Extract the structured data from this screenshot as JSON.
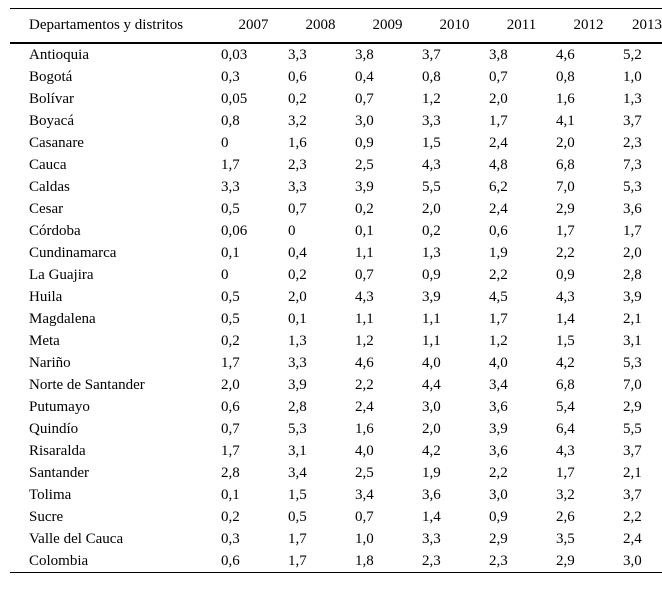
{
  "page": {
    "background_color": "#ffffff",
    "text_color": "#000000",
    "rule_color": "#000000"
  },
  "table": {
    "header": {
      "label_column": "Departamentos y distritos",
      "years": [
        "2007",
        "2008",
        "2009",
        "2010",
        "2011",
        "2012",
        "2013"
      ]
    },
    "rows": [
      {
        "name": "Antioquia",
        "values": [
          "0,03",
          "3,3",
          "3,8",
          "3,7",
          "3,8",
          "4,6",
          "5,2"
        ]
      },
      {
        "name": "Bogotá",
        "values": [
          "0,3",
          "0,6",
          "0,4",
          "0,8",
          "0,7",
          "0,8",
          "1,0"
        ]
      },
      {
        "name": "Bolívar",
        "values": [
          "0,05",
          "0,2",
          "0,7",
          "1,2",
          "2,0",
          "1,6",
          "1,3"
        ]
      },
      {
        "name": "Boyacá",
        "values": [
          "0,8",
          "3,2",
          "3,0",
          "3,3",
          "1,7",
          "4,1",
          "3,7"
        ]
      },
      {
        "name": "Casanare",
        "values": [
          "0",
          "1,6",
          "0,9",
          "1,5",
          "2,4",
          "2,0",
          "2,3"
        ]
      },
      {
        "name": "Cauca",
        "values": [
          "1,7",
          "2,3",
          "2,5",
          "4,3",
          "4,8",
          "6,8",
          "7,3"
        ]
      },
      {
        "name": "Caldas",
        "values": [
          "3,3",
          "3,3",
          "3,9",
          "5,5",
          "6,2",
          "7,0",
          "5,3"
        ]
      },
      {
        "name": "Cesar",
        "values": [
          "0,5",
          "0,7",
          "0,2",
          "2,0",
          "2,4",
          "2,9",
          "3,6"
        ]
      },
      {
        "name": "Córdoba",
        "values": [
          "0,06",
          "0",
          "0,1",
          "0,2",
          "0,6",
          "1,7",
          "1,7"
        ]
      },
      {
        "name": "Cundinamarca",
        "values": [
          "0,1",
          "0,4",
          "1,1",
          "1,3",
          "1,9",
          "2,2",
          "2,0"
        ]
      },
      {
        "name": "La Guajira",
        "values": [
          "0",
          "0,2",
          "0,7",
          "0,9",
          "2,2",
          "0,9",
          "2,8"
        ]
      },
      {
        "name": "Huila",
        "values": [
          "0,5",
          "2,0",
          "4,3",
          "3,9",
          "4,5",
          "4,3",
          "3,9"
        ]
      },
      {
        "name": "Magdalena",
        "values": [
          "0,5",
          "0,1",
          "1,1",
          "1,1",
          "1,7",
          "1,4",
          "2,1"
        ]
      },
      {
        "name": "Meta",
        "values": [
          "0,2",
          "1,3",
          "1,2",
          "1,1",
          "1,2",
          "1,5",
          "3,1"
        ]
      },
      {
        "name": "Nariño",
        "values": [
          "1,7",
          "3,3",
          "4,6",
          "4,0",
          "4,0",
          "4,2",
          "5,3"
        ]
      },
      {
        "name": "Norte de Santander",
        "values": [
          "2,0",
          "3,9",
          "2,2",
          "4,4",
          "3,4",
          "6,8",
          "7,0"
        ]
      },
      {
        "name": "Putumayo",
        "values": [
          "0,6",
          "2,8",
          "2,4",
          "3,0",
          "3,6",
          "5,4",
          "2,9"
        ]
      },
      {
        "name": "Quindío",
        "values": [
          "0,7",
          "5,3",
          "1,6",
          "2,0",
          "3,9",
          "6,4",
          "5,5"
        ]
      },
      {
        "name": "Risaralda",
        "values": [
          "1,7",
          "3,1",
          "4,0",
          "4,2",
          "3,6",
          "4,3",
          "3,7"
        ]
      },
      {
        "name": "Santander",
        "values": [
          "2,8",
          "3,4",
          "2,5",
          "1,9",
          "2,2",
          "1,7",
          "2,1"
        ]
      },
      {
        "name": "Tolima",
        "values": [
          "0,1",
          "1,5",
          "3,4",
          "3,6",
          "3,0",
          "3,2",
          "3,7"
        ]
      },
      {
        "name": "Sucre",
        "values": [
          "0,2",
          "0,5",
          "0,7",
          "1,4",
          "0,9",
          "2,6",
          "2,2"
        ]
      },
      {
        "name": "Valle del Cauca",
        "values": [
          "0,3",
          "1,7",
          "1,0",
          "3,3",
          "2,9",
          "3,5",
          "2,4"
        ]
      },
      {
        "name": "Colombia",
        "values": [
          "0,6",
          "1,7",
          "1,8",
          "2,3",
          "2,3",
          "2,9",
          "3,0"
        ]
      }
    ]
  },
  "chart_data": {
    "type": "table",
    "columns": [
      "Departamentos y distritos",
      "2007",
      "2008",
      "2009",
      "2010",
      "2011",
      "2012",
      "2013"
    ],
    "rows": [
      [
        "Antioquia",
        0.03,
        3.3,
        3.8,
        3.7,
        3.8,
        4.6,
        5.2
      ],
      [
        "Bogotá",
        0.3,
        0.6,
        0.4,
        0.8,
        0.7,
        0.8,
        1.0
      ],
      [
        "Bolívar",
        0.05,
        0.2,
        0.7,
        1.2,
        2.0,
        1.6,
        1.3
      ],
      [
        "Boyacá",
        0.8,
        3.2,
        3.0,
        3.3,
        1.7,
        4.1,
        3.7
      ],
      [
        "Casanare",
        0,
        1.6,
        0.9,
        1.5,
        2.4,
        2.0,
        2.3
      ],
      [
        "Cauca",
        1.7,
        2.3,
        2.5,
        4.3,
        4.8,
        6.8,
        7.3
      ],
      [
        "Caldas",
        3.3,
        3.3,
        3.9,
        5.5,
        6.2,
        7.0,
        5.3
      ],
      [
        "Cesar",
        0.5,
        0.7,
        0.2,
        2.0,
        2.4,
        2.9,
        3.6
      ],
      [
        "Córdoba",
        0.06,
        0,
        0.1,
        0.2,
        0.6,
        1.7,
        1.7
      ],
      [
        "Cundinamarca",
        0.1,
        0.4,
        1.1,
        1.3,
        1.9,
        2.2,
        2.0
      ],
      [
        "La Guajira",
        0,
        0.2,
        0.7,
        0.9,
        2.2,
        0.9,
        2.8
      ],
      [
        "Huila",
        0.5,
        2.0,
        4.3,
        3.9,
        4.5,
        4.3,
        3.9
      ],
      [
        "Magdalena",
        0.5,
        0.1,
        1.1,
        1.1,
        1.7,
        1.4,
        2.1
      ],
      [
        "Meta",
        0.2,
        1.3,
        1.2,
        1.1,
        1.2,
        1.5,
        3.1
      ],
      [
        "Nariño",
        1.7,
        3.3,
        4.6,
        4.0,
        4.0,
        4.2,
        5.3
      ],
      [
        "Norte de Santander",
        2.0,
        3.9,
        2.2,
        4.4,
        3.4,
        6.8,
        7.0
      ],
      [
        "Putumayo",
        0.6,
        2.8,
        2.4,
        3.0,
        3.6,
        5.4,
        2.9
      ],
      [
        "Quindío",
        0.7,
        5.3,
        1.6,
        2.0,
        3.9,
        6.4,
        5.5
      ],
      [
        "Risaralda",
        1.7,
        3.1,
        4.0,
        4.2,
        3.6,
        4.3,
        3.7
      ],
      [
        "Santander",
        2.8,
        3.4,
        2.5,
        1.9,
        2.2,
        1.7,
        2.1
      ],
      [
        "Tolima",
        0.1,
        1.5,
        3.4,
        3.6,
        3.0,
        3.2,
        3.7
      ],
      [
        "Sucre",
        0.2,
        0.5,
        0.7,
        1.4,
        0.9,
        2.6,
        2.2
      ],
      [
        "Valle del Cauca",
        0.3,
        1.7,
        1.0,
        3.3,
        2.9,
        3.5,
        2.4
      ],
      [
        "Colombia",
        0.6,
        1.7,
        1.8,
        2.3,
        2.3,
        2.9,
        3.0
      ]
    ]
  }
}
